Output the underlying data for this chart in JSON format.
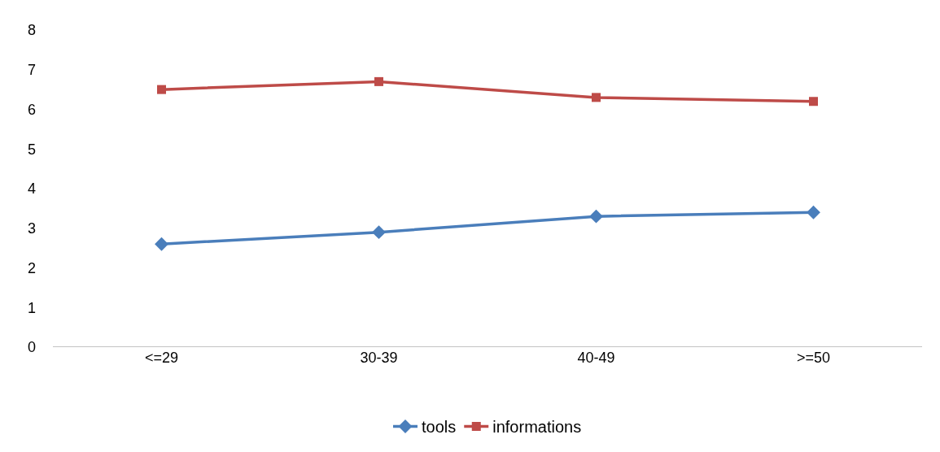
{
  "chart_data": {
    "type": "line",
    "categories": [
      "<=29",
      "30-39",
      "40-49",
      ">=50"
    ],
    "series": [
      {
        "name": "tools",
        "color": "#4a7ebb",
        "marker": "diamond",
        "values": [
          2.6,
          2.9,
          3.3,
          3.4
        ]
      },
      {
        "name": "informations",
        "color": "#be4b48",
        "marker": "square",
        "values": [
          6.5,
          6.7,
          6.3,
          6.2
        ]
      }
    ],
    "ylim": [
      0,
      8
    ],
    "yticks": [
      0,
      1,
      2,
      3,
      4,
      5,
      6,
      7,
      8
    ],
    "grid": false,
    "legend": "bottom",
    "line_style": "solid"
  }
}
